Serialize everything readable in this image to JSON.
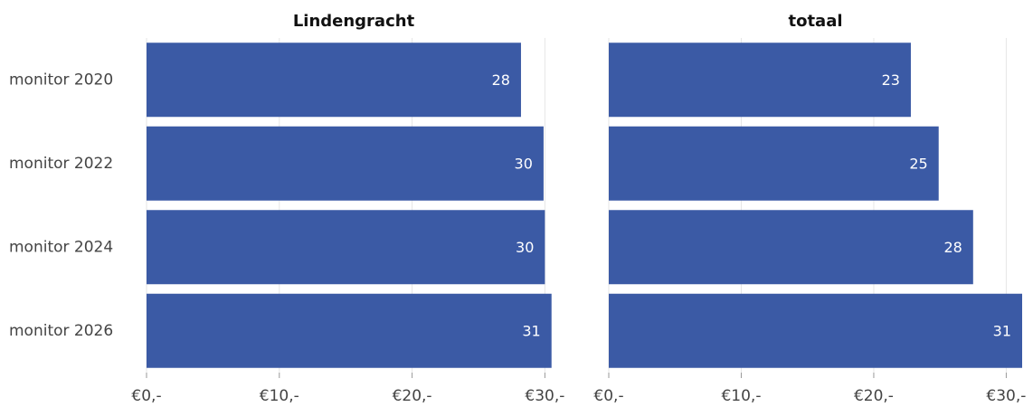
{
  "chart_data": [
    {
      "type": "bar",
      "title": "Lindengracht",
      "categories": [
        "monitor 2020",
        "monitor 2022",
        "monitor 2024",
        "monitor 2026"
      ],
      "values": [
        28.2,
        29.9,
        30.0,
        30.5
      ],
      "value_labels": [
        "28",
        "30",
        "30",
        "31"
      ],
      "color": "#3b5aa5",
      "xlim": [
        0,
        31.2
      ],
      "xticks": [
        {
          "value": 0,
          "label": "€0,-"
        },
        {
          "value": 10,
          "label": "€10,-"
        },
        {
          "value": 20,
          "label": "€20,-"
        },
        {
          "value": 30,
          "label": "€30,-"
        }
      ],
      "grid": true
    },
    {
      "type": "bar",
      "title": "totaal",
      "values": [
        22.8,
        24.9,
        27.5,
        31.2
      ],
      "value_labels": [
        "23",
        "25",
        "28",
        "31"
      ],
      "color": "#3b5aa5",
      "xlim": [
        0,
        31.2
      ],
      "xticks": [
        {
          "value": 0,
          "label": "€0,-"
        },
        {
          "value": 10,
          "label": "€10,-"
        },
        {
          "value": 20,
          "label": "€20,-"
        },
        {
          "value": 30,
          "label": "€30,-"
        }
      ],
      "grid": true
    }
  ]
}
